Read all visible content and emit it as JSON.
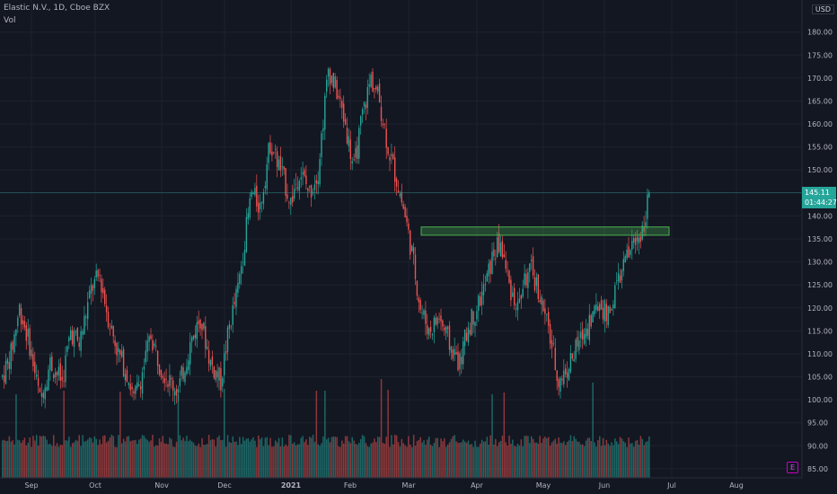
{
  "header": {
    "symbol": "Elastic N.V., 1D, Cboe BZX",
    "volume_label": "Vol"
  },
  "currency": "USD",
  "last_price": {
    "value": "145.11",
    "countdown": "01:44:27"
  },
  "events_badge": "E",
  "chart_data": {
    "type": "candlestick",
    "ylim": [
      84,
      186
    ],
    "y_ticks": [
      "85.00",
      "90.00",
      "95.00",
      "100.00",
      "105.00",
      "110.00",
      "115.00",
      "120.00",
      "125.00",
      "130.00",
      "135.00",
      "140.00",
      "145.00",
      "150.00",
      "155.00",
      "160.00",
      "165.00",
      "170.00",
      "175.00",
      "180.00"
    ],
    "x_ticks": [
      "Sep",
      "Oct",
      "Nov",
      "Dec",
      "2021",
      "Feb",
      "Mar",
      "Apr",
      "May",
      "Jun",
      "Jul",
      "Aug"
    ],
    "colors": {
      "up": "#26a69a",
      "down": "#ef5350",
      "zone": "#4caf50"
    },
    "resistance_zone": {
      "low": 135.8,
      "high": 137.6
    },
    "price_path": [
      [
        0,
        105
      ],
      [
        5,
        110
      ],
      [
        10,
        120
      ],
      [
        16,
        112
      ],
      [
        22,
        100
      ],
      [
        28,
        108
      ],
      [
        35,
        104
      ],
      [
        40,
        115
      ],
      [
        45,
        112
      ],
      [
        52,
        124
      ],
      [
        57,
        127
      ],
      [
        62,
        118
      ],
      [
        68,
        110
      ],
      [
        73,
        106
      ],
      [
        77,
        100
      ],
      [
        82,
        106
      ],
      [
        87,
        114
      ],
      [
        92,
        108
      ],
      [
        98,
        104
      ],
      [
        103,
        102
      ],
      [
        110,
        112
      ],
      [
        116,
        118
      ],
      [
        122,
        108
      ],
      [
        128,
        104
      ],
      [
        133,
        116
      ],
      [
        138,
        124
      ],
      [
        142,
        135
      ],
      [
        146,
        145
      ],
      [
        151,
        142
      ],
      [
        157,
        156
      ],
      [
        163,
        150
      ],
      [
        169,
        143
      ],
      [
        174,
        150
      ],
      [
        180,
        145
      ],
      [
        185,
        150
      ],
      [
        191,
        172
      ],
      [
        196,
        167
      ],
      [
        201,
        160
      ],
      [
        206,
        150
      ],
      [
        211,
        162
      ],
      [
        216,
        170
      ],
      [
        221,
        165
      ],
      [
        226,
        155
      ],
      [
        231,
        148
      ],
      [
        236,
        140
      ],
      [
        240,
        132
      ],
      [
        245,
        120
      ],
      [
        250,
        115
      ],
      [
        256,
        118
      ],
      [
        262,
        112
      ],
      [
        268,
        108
      ],
      [
        273,
        116
      ],
      [
        278,
        120
      ],
      [
        283,
        125
      ],
      [
        288,
        132
      ],
      [
        292,
        134
      ],
      [
        297,
        125
      ],
      [
        302,
        120
      ],
      [
        306,
        126
      ],
      [
        310,
        128
      ],
      [
        314,
        124
      ],
      [
        318,
        118
      ],
      [
        322,
        112
      ],
      [
        326,
        104
      ],
      [
        330,
        106
      ],
      [
        335,
        110
      ],
      [
        340,
        114
      ],
      [
        345,
        118
      ],
      [
        350,
        121
      ],
      [
        355,
        118
      ],
      [
        360,
        125
      ],
      [
        365,
        130
      ],
      [
        370,
        134
      ],
      [
        375,
        137
      ],
      [
        379,
        145
      ]
    ],
    "volume_spikes": [
      [
        8,
        93
      ],
      [
        36,
        97
      ],
      [
        69,
        96
      ],
      [
        103,
        93
      ],
      [
        130,
        99
      ],
      [
        184,
        97
      ],
      [
        189,
        97
      ],
      [
        222,
        110
      ],
      [
        226,
        98
      ],
      [
        287,
        93
      ],
      [
        294,
        95
      ],
      [
        346,
        106
      ]
    ]
  }
}
